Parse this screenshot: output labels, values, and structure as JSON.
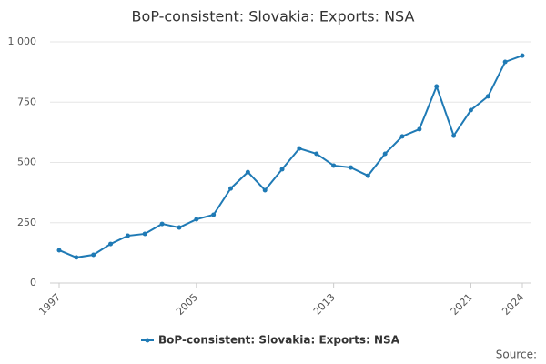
{
  "chart_data": {
    "type": "line",
    "title": "BoP-consistent: Slovakia: Exports: NSA",
    "x": [
      1997,
      1998,
      1999,
      2000,
      2001,
      2002,
      2003,
      2004,
      2005,
      2006,
      2007,
      2008,
      2009,
      2010,
      2011,
      2012,
      2013,
      2014,
      2015,
      2016,
      2017,
      2018,
      2019,
      2020,
      2021,
      2022,
      2023,
      2024
    ],
    "series": [
      {
        "name": "BoP-consistent: Slovakia: Exports: NSA",
        "color": "#1f7ab5",
        "values": [
          136,
          106,
          117,
          162,
          196,
          204,
          245,
          230,
          264,
          283,
          392,
          460,
          385,
          472,
          558,
          536,
          487,
          479,
          445,
          536,
          608,
          638,
          815,
          611,
          717,
          774,
          917,
          943
        ]
      }
    ],
    "xlim": [
      1997,
      2024
    ],
    "xticks": [
      1997,
      2005,
      2013,
      2021,
      2024
    ],
    "ylim": [
      0,
      1000
    ],
    "yticks": [
      0,
      250,
      500,
      750,
      {
        "value": 1000,
        "label": "1 000"
      }
    ],
    "grid": true,
    "legend": "bottom",
    "source": "Source:"
  }
}
